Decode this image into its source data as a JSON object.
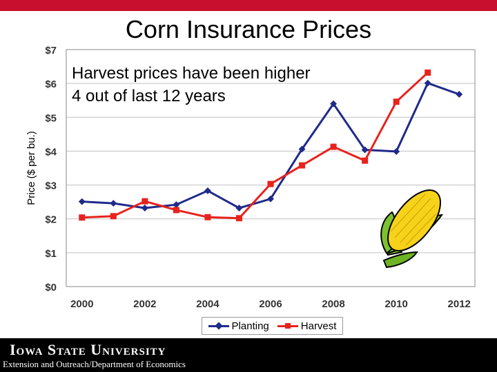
{
  "slide": {
    "title": "Corn Insurance Prices"
  },
  "footer": {
    "logo_text": "Iowa State University",
    "subtitle": "Extension and Outreach/Department of Economics"
  },
  "colors": {
    "planting": "#1f2a8a",
    "harvest": "#e8221c",
    "grid": "#c0c0c0",
    "brand": "#c8102e"
  },
  "chart_data": {
    "type": "line",
    "title": "Corn Insurance Prices",
    "xlabel": "",
    "ylabel": "Price ($ per bu.)",
    "x": [
      2000,
      2001,
      2002,
      2003,
      2004,
      2005,
      2006,
      2007,
      2008,
      2009,
      2010,
      2011,
      2012
    ],
    "xticks": [
      "2000",
      "2002",
      "2004",
      "2006",
      "2008",
      "2010",
      "2012"
    ],
    "yticks": [
      "$0",
      "$1",
      "$2",
      "$3",
      "$4",
      "$5",
      "$6",
      "$7"
    ],
    "ylim": [
      0,
      7
    ],
    "xlim": [
      1999.5,
      2012.5
    ],
    "series": [
      {
        "name": "Planting",
        "marker": "diamond",
        "values": [
          2.51,
          2.46,
          2.32,
          2.42,
          2.83,
          2.32,
          2.59,
          4.06,
          5.4,
          4.04,
          3.99,
          6.01,
          5.68
        ]
      },
      {
        "name": "Harvest",
        "marker": "square",
        "values": [
          2.04,
          2.08,
          2.52,
          2.26,
          2.05,
          2.02,
          3.03,
          3.58,
          4.13,
          3.72,
          5.46,
          6.32,
          null
        ]
      }
    ],
    "annotation": [
      "Harvest prices have been higher",
      "4 out of last 12 years"
    ],
    "legend_position": "bottom"
  }
}
